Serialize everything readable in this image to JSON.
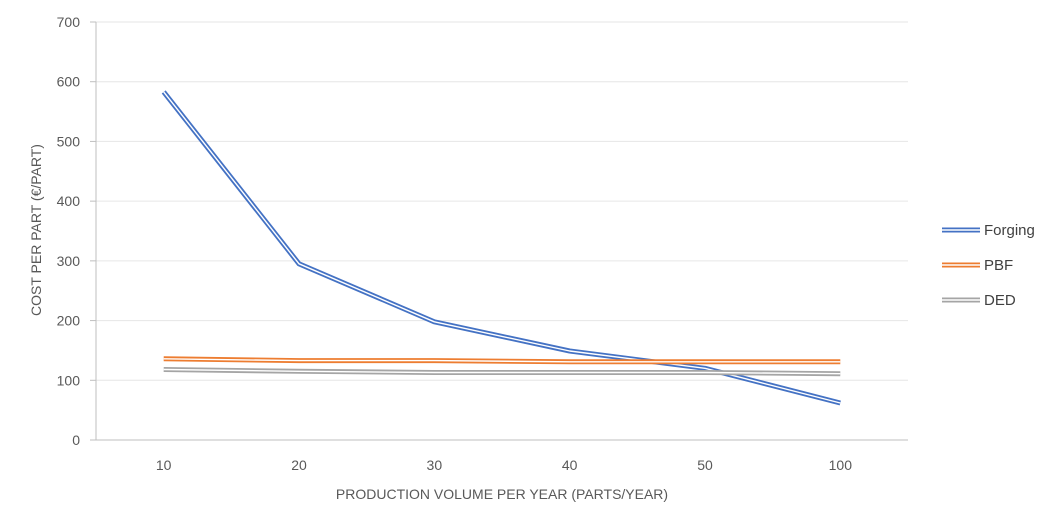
{
  "chart_data": {
    "type": "line",
    "title": "",
    "xlabel": "PRODUCTION VOLUME PER YEAR (PARTS/YEAR)",
    "ylabel": "COST PER PART (€/PART)",
    "categories": [
      "10",
      "20",
      "30",
      "40",
      "50",
      "100"
    ],
    "ylim": [
      0,
      700
    ],
    "yticks": [
      "0",
      "100",
      "200",
      "300",
      "400",
      "500",
      "600",
      "700"
    ],
    "grid": true,
    "legend_position": "right",
    "series": [
      {
        "name": "Forging",
        "color": "#4472C4",
        "values": [
          583,
          295,
          198,
          149,
          120,
          62
        ]
      },
      {
        "name": "PBF",
        "color": "#ED7D31",
        "values": [
          136,
          133,
          133,
          131,
          131,
          131
        ]
      },
      {
        "name": "DED",
        "color": "#A5A5A5",
        "values": [
          118,
          115,
          113,
          113,
          113,
          111
        ]
      }
    ]
  }
}
